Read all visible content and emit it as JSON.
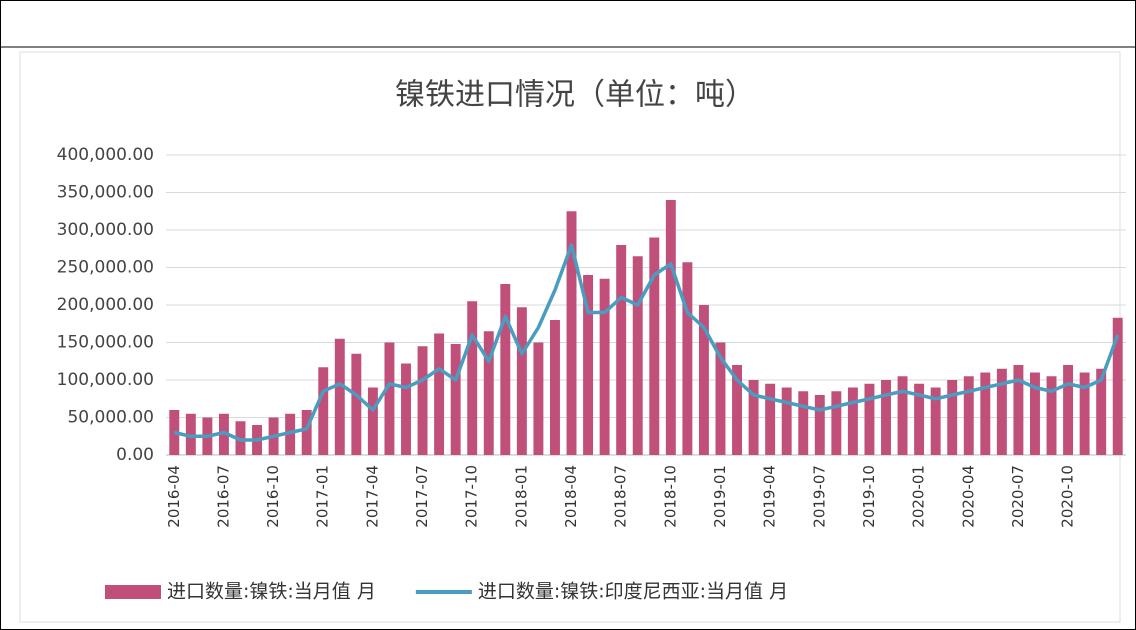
{
  "chart_data": {
    "type": "bar-line",
    "title": "镍铁进口情况（单位：吨）",
    "categories": [
      "2016-04",
      null,
      null,
      "2016-07",
      null,
      null,
      "2016-10",
      null,
      null,
      "2017-01",
      null,
      null,
      "2017-04",
      null,
      null,
      "2017-07",
      null,
      null,
      "2017-10",
      null,
      null,
      "2018-01",
      null,
      null,
      "2018-04",
      null,
      null,
      "2018-07",
      null,
      null,
      "2018-10",
      null,
      null,
      "2019-01",
      null,
      null,
      "2019-04",
      null,
      null,
      "2019-07",
      null,
      null,
      "2019-10",
      null,
      null,
      "2020-01",
      null,
      null,
      "2020-04",
      null,
      null,
      "2020-07",
      null,
      null,
      "2020-10",
      null,
      null,
      null
    ],
    "series": [
      {
        "name": "进口数量:镍铁:当月值 月",
        "kind": "bar",
        "color": "#c0507a",
        "values": [
          60000,
          55000,
          50000,
          55000,
          45000,
          40000,
          50000,
          55000,
          60000,
          117000,
          155000,
          135000,
          90000,
          150000,
          122000,
          145000,
          162000,
          148000,
          205000,
          165000,
          228000,
          197000,
          150000,
          180000,
          325000,
          240000,
          235000,
          280000,
          265000,
          290000,
          340000,
          257000,
          200000,
          150000,
          120000,
          100000,
          95000,
          90000,
          85000,
          80000,
          85000,
          90000,
          95000,
          100000,
          105000,
          95000,
          90000,
          100000,
          105000,
          110000,
          115000,
          120000,
          110000,
          105000,
          120000,
          110000,
          115000,
          183000
        ]
      },
      {
        "name": "进口数量:镍铁:印度尼西亚:当月值 月",
        "kind": "line",
        "color": "#4a9cc0",
        "values": [
          30000,
          25000,
          25000,
          30000,
          20000,
          20000,
          25000,
          30000,
          35000,
          85000,
          95000,
          80000,
          60000,
          95000,
          90000,
          100000,
          115000,
          100000,
          160000,
          125000,
          185000,
          135000,
          170000,
          220000,
          280000,
          190000,
          190000,
          210000,
          200000,
          240000,
          255000,
          190000,
          170000,
          130000,
          100000,
          80000,
          75000,
          70000,
          65000,
          60000,
          65000,
          70000,
          75000,
          80000,
          85000,
          80000,
          75000,
          80000,
          85000,
          90000,
          95000,
          100000,
          90000,
          85000,
          95000,
          90000,
          100000,
          160000
        ]
      }
    ],
    "ylim": [
      0,
      400000
    ],
    "yticks": [
      {
        "value": 0,
        "label": "0.00"
      },
      {
        "value": 50000,
        "label": "50,000.00"
      },
      {
        "value": 100000,
        "label": "100,000.00"
      },
      {
        "value": 150000,
        "label": "150,000.00"
      },
      {
        "value": 200000,
        "label": "200,000.00"
      },
      {
        "value": 250000,
        "label": "250,000.00"
      },
      {
        "value": 300000,
        "label": "300,000.00"
      },
      {
        "value": 350000,
        "label": "350,000.00"
      },
      {
        "value": 400000,
        "label": "400,000.00"
      }
    ],
    "grid": true,
    "legend": "bottom"
  }
}
